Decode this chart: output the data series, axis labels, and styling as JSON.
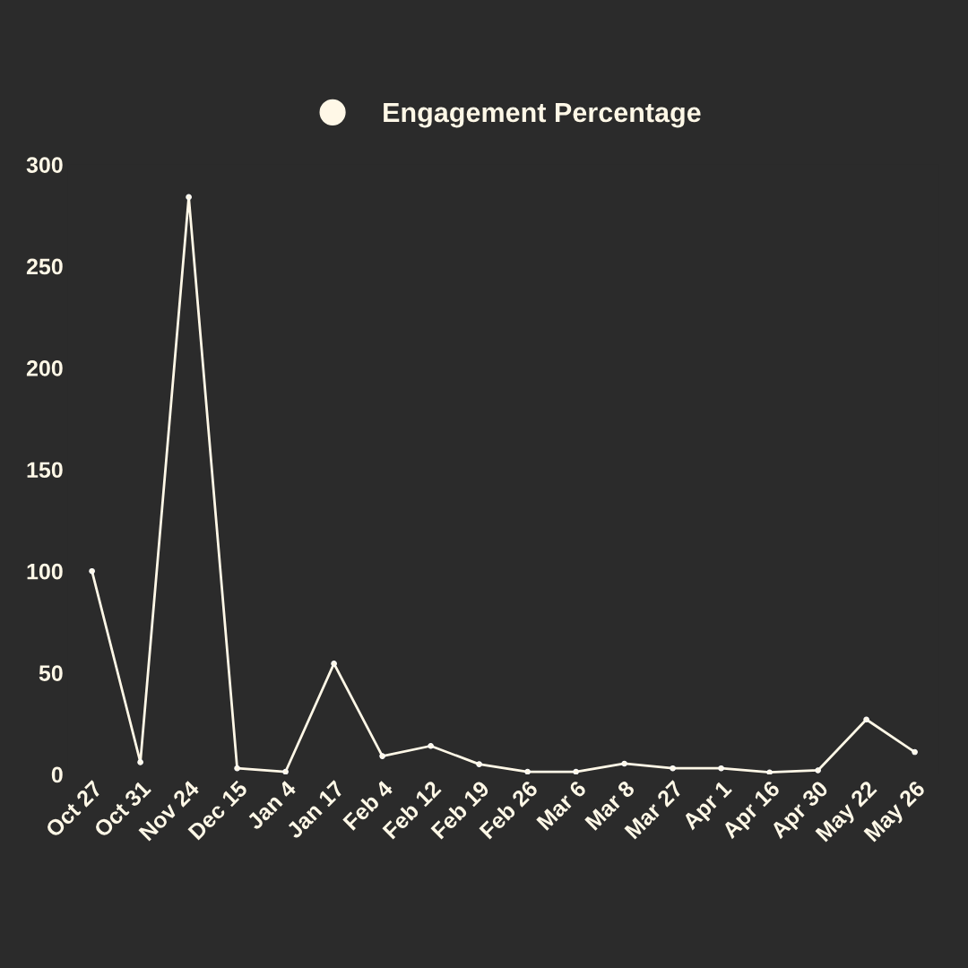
{
  "chart_data": {
    "type": "line",
    "categories": [
      "Oct 27",
      "Oct 31",
      "Nov 24",
      "Dec 15",
      "Jan 4",
      "Jan 17",
      "Feb 4",
      "Feb 12",
      "Feb 19",
      "Feb 26",
      "Mar 6",
      "Mar 8",
      "Mar 27",
      "Apr 1",
      "Apr 16",
      "Apr 30",
      "May 22",
      "May 26"
    ],
    "series": [
      {
        "name": "Engagement Percentage",
        "color": "#fff8e7",
        "values": [
          100,
          6,
          284,
          3,
          1.3,
          54.5,
          9,
          14,
          5,
          1.3,
          1.3,
          5.3,
          3,
          3,
          1,
          2,
          27,
          11
        ]
      }
    ],
    "ylim": [
      0,
      300
    ],
    "yticks": [
      0,
      50,
      100,
      150,
      200,
      250,
      300
    ],
    "grid": false,
    "legend": "top",
    "marker": "circle",
    "line_style": "solid"
  }
}
